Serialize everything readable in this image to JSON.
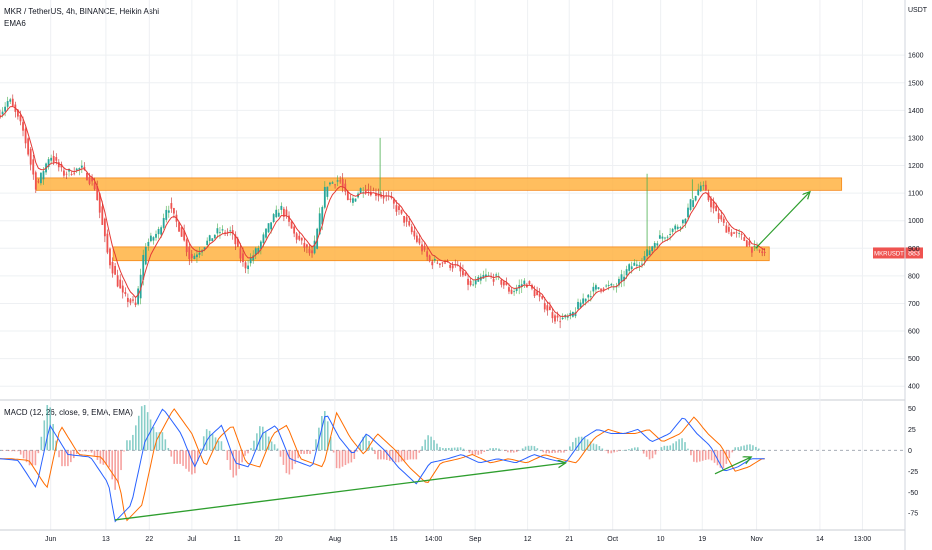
{
  "header": {
    "title": "MKR / TetherUS, 4h, BINANCE, Heikin Ashi",
    "indicator": "EMA6"
  },
  "macd_panel": {
    "label": "MACD (12, 26, close, 9, EMA, EMA)"
  },
  "colors": {
    "up": "#26a69a",
    "down": "#ef5350",
    "upWick": "#4caf50",
    "downWick": "#c62828",
    "ema": "#e53935",
    "zone_fill": "#ffb74d",
    "zone_border": "#f57c00",
    "arrow": "#2e9e2e",
    "macd": "#2962ff",
    "signal": "#ff6d00",
    "hist_up": "#26a69a",
    "hist_down": "#ef5350",
    "label_bg": "#ef5350",
    "grid": "#eef0f3"
  },
  "chart_data": [
    {
      "type": "candlestick",
      "currency": "USDT",
      "ylim": [
        350,
        1800
      ],
      "y_ticks": [
        400,
        500,
        600,
        700,
        800,
        900,
        1000,
        1100,
        1200,
        1300,
        1400,
        1500,
        1600
      ],
      "x_labels": [
        {
          "label": "Jun",
          "t": 0.056
        },
        {
          "label": "13",
          "t": 0.117
        },
        {
          "label": "22",
          "t": 0.165
        },
        {
          "label": "Jul",
          "t": 0.212
        },
        {
          "label": "11",
          "t": 0.262
        },
        {
          "label": "20",
          "t": 0.308
        },
        {
          "label": "Aug",
          "t": 0.37
        },
        {
          "label": "15",
          "t": 0.435
        },
        {
          "label": "14:00",
          "t": 0.479
        },
        {
          "label": "Sep",
          "t": 0.525
        },
        {
          "label": "12",
          "t": 0.583
        },
        {
          "label": "21",
          "t": 0.629
        },
        {
          "label": "Oct",
          "t": 0.677
        },
        {
          "label": "10",
          "t": 0.73
        },
        {
          "label": "19",
          "t": 0.776
        },
        {
          "label": "Nov",
          "t": 0.836
        },
        {
          "label": "14",
          "t": 0.906
        },
        {
          "label": "13:00",
          "t": 0.953
        }
      ],
      "price_path": [
        [
          0.0,
          1390
        ],
        [
          0.01,
          1440
        ],
        [
          0.025,
          1330
        ],
        [
          0.04,
          1120
        ],
        [
          0.055,
          1240
        ],
        [
          0.07,
          1170
        ],
        [
          0.09,
          1190
        ],
        [
          0.105,
          1120
        ],
        [
          0.12,
          860
        ],
        [
          0.135,
          730
        ],
        [
          0.15,
          690
        ],
        [
          0.16,
          910
        ],
        [
          0.175,
          960
        ],
        [
          0.185,
          1060
        ],
        [
          0.2,
          960
        ],
        [
          0.21,
          860
        ],
        [
          0.225,
          910
        ],
        [
          0.24,
          960
        ],
        [
          0.255,
          960
        ],
        [
          0.27,
          830
        ],
        [
          0.285,
          900
        ],
        [
          0.3,
          1000
        ],
        [
          0.31,
          1050
        ],
        [
          0.325,
          950
        ],
        [
          0.345,
          870
        ],
        [
          0.36,
          1130
        ],
        [
          0.375,
          1150
        ],
        [
          0.385,
          1060
        ],
        [
          0.4,
          1120
        ],
        [
          0.415,
          1100
        ],
        [
          0.43,
          1080
        ],
        [
          0.445,
          1010
        ],
        [
          0.46,
          930
        ],
        [
          0.475,
          850
        ],
        [
          0.49,
          850
        ],
        [
          0.505,
          830
        ],
        [
          0.52,
          760
        ],
        [
          0.535,
          800
        ],
        [
          0.55,
          790
        ],
        [
          0.565,
          740
        ],
        [
          0.58,
          780
        ],
        [
          0.595,
          720
        ],
        [
          0.615,
          640
        ],
        [
          0.63,
          650
        ],
        [
          0.645,
          720
        ],
        [
          0.66,
          760
        ],
        [
          0.68,
          760
        ],
        [
          0.695,
          830
        ],
        [
          0.71,
          860
        ],
        [
          0.725,
          930
        ],
        [
          0.74,
          960
        ],
        [
          0.755,
          1000
        ],
        [
          0.765,
          1080
        ],
        [
          0.775,
          1130
        ],
        [
          0.79,
          1030
        ],
        [
          0.805,
          960
        ],
        [
          0.82,
          940
        ],
        [
          0.83,
          900
        ],
        [
          0.845,
          880
        ]
      ],
      "wick_spikes": [
        {
          "t": 0.42,
          "high": 1300
        },
        {
          "t": 0.715,
          "high": 1170
        },
        {
          "t": 0.765,
          "high": 1150
        }
      ],
      "zones": [
        {
          "t0": 0.04,
          "t1": 0.93,
          "low": 1110,
          "high": 1155
        },
        {
          "t0": 0.125,
          "t1": 0.85,
          "low": 855,
          "high": 905
        }
      ],
      "arrow": {
        "t0": 0.835,
        "v0": 900,
        "t1": 0.895,
        "v1": 1105
      },
      "last_price": {
        "symbol": "MKRUSDT",
        "value": "883"
      }
    },
    {
      "type": "macd",
      "ylim": [
        -95,
        60
      ],
      "y_ticks": [
        "50",
        "25",
        "0",
        "-25",
        "-50",
        "-75"
      ],
      "macd_path": [
        [
          0.0,
          -10
        ],
        [
          0.02,
          -12
        ],
        [
          0.04,
          -45
        ],
        [
          0.055,
          30
        ],
        [
          0.075,
          -5
        ],
        [
          0.1,
          -8
        ],
        [
          0.12,
          -40
        ],
        [
          0.127,
          -85
        ],
        [
          0.145,
          -65
        ],
        [
          0.16,
          10
        ],
        [
          0.18,
          50
        ],
        [
          0.2,
          20
        ],
        [
          0.215,
          -20
        ],
        [
          0.23,
          15
        ],
        [
          0.245,
          30
        ],
        [
          0.26,
          -15
        ],
        [
          0.275,
          -20
        ],
        [
          0.29,
          20
        ],
        [
          0.305,
          30
        ],
        [
          0.32,
          -10
        ],
        [
          0.345,
          -20
        ],
        [
          0.36,
          45
        ],
        [
          0.375,
          15
        ],
        [
          0.39,
          -5
        ],
        [
          0.405,
          20
        ],
        [
          0.425,
          0
        ],
        [
          0.44,
          -20
        ],
        [
          0.46,
          -40
        ],
        [
          0.475,
          -15
        ],
        [
          0.495,
          -10
        ],
        [
          0.51,
          -5
        ],
        [
          0.53,
          -15
        ],
        [
          0.55,
          -10
        ],
        [
          0.57,
          -15
        ],
        [
          0.59,
          -5
        ],
        [
          0.605,
          -10
        ],
        [
          0.625,
          -15
        ],
        [
          0.645,
          15
        ],
        [
          0.66,
          25
        ],
        [
          0.675,
          20
        ],
        [
          0.69,
          20
        ],
        [
          0.705,
          25
        ],
        [
          0.72,
          10
        ],
        [
          0.74,
          20
        ],
        [
          0.755,
          40
        ],
        [
          0.77,
          20
        ],
        [
          0.785,
          5
        ],
        [
          0.8,
          -25
        ],
        [
          0.815,
          -20
        ],
        [
          0.83,
          -10
        ],
        [
          0.845,
          -10
        ]
      ],
      "signal_lag": 0.012,
      "trendlines": [
        {
          "t0": 0.127,
          "v0": -83,
          "t1": 0.625,
          "v1": -15
        },
        {
          "t0": 0.79,
          "v0": -28,
          "t1": 0.83,
          "v1": -8
        }
      ]
    }
  ]
}
